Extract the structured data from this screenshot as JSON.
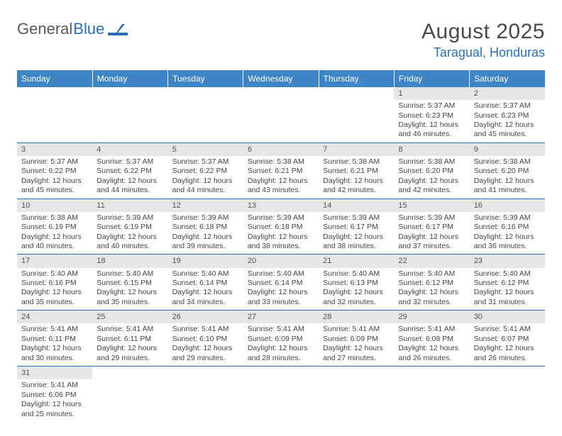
{
  "logo": {
    "text1": "General",
    "text2": "Blue"
  },
  "title": "August 2025",
  "location": "Taragual, Honduras",
  "header_bg": "#3d85c6",
  "daybar_bg": "#e6e6e6",
  "rule_color": "#2a6fb5",
  "weekdays": [
    "Sunday",
    "Monday",
    "Tuesday",
    "Wednesday",
    "Thursday",
    "Friday",
    "Saturday"
  ],
  "weeks": [
    [
      null,
      null,
      null,
      null,
      null,
      {
        "n": "1",
        "sr": "5:37 AM",
        "ss": "6:23 PM",
        "dl": "12 hours and 46 minutes."
      },
      {
        "n": "2",
        "sr": "5:37 AM",
        "ss": "6:23 PM",
        "dl": "12 hours and 45 minutes."
      }
    ],
    [
      {
        "n": "3",
        "sr": "5:37 AM",
        "ss": "6:22 PM",
        "dl": "12 hours and 45 minutes."
      },
      {
        "n": "4",
        "sr": "5:37 AM",
        "ss": "6:22 PM",
        "dl": "12 hours and 44 minutes."
      },
      {
        "n": "5",
        "sr": "5:37 AM",
        "ss": "6:22 PM",
        "dl": "12 hours and 44 minutes."
      },
      {
        "n": "6",
        "sr": "5:38 AM",
        "ss": "6:21 PM",
        "dl": "12 hours and 43 minutes."
      },
      {
        "n": "7",
        "sr": "5:38 AM",
        "ss": "6:21 PM",
        "dl": "12 hours and 42 minutes."
      },
      {
        "n": "8",
        "sr": "5:38 AM",
        "ss": "6:20 PM",
        "dl": "12 hours and 42 minutes."
      },
      {
        "n": "9",
        "sr": "5:38 AM",
        "ss": "6:20 PM",
        "dl": "12 hours and 41 minutes."
      }
    ],
    [
      {
        "n": "10",
        "sr": "5:38 AM",
        "ss": "6:19 PM",
        "dl": "12 hours and 40 minutes."
      },
      {
        "n": "11",
        "sr": "5:39 AM",
        "ss": "6:19 PM",
        "dl": "12 hours and 40 minutes."
      },
      {
        "n": "12",
        "sr": "5:39 AM",
        "ss": "6:18 PM",
        "dl": "12 hours and 39 minutes."
      },
      {
        "n": "13",
        "sr": "5:39 AM",
        "ss": "6:18 PM",
        "dl": "12 hours and 38 minutes."
      },
      {
        "n": "14",
        "sr": "5:39 AM",
        "ss": "6:17 PM",
        "dl": "12 hours and 38 minutes."
      },
      {
        "n": "15",
        "sr": "5:39 AM",
        "ss": "6:17 PM",
        "dl": "12 hours and 37 minutes."
      },
      {
        "n": "16",
        "sr": "5:39 AM",
        "ss": "6:16 PM",
        "dl": "12 hours and 36 minutes."
      }
    ],
    [
      {
        "n": "17",
        "sr": "5:40 AM",
        "ss": "6:16 PM",
        "dl": "12 hours and 35 minutes."
      },
      {
        "n": "18",
        "sr": "5:40 AM",
        "ss": "6:15 PM",
        "dl": "12 hours and 35 minutes."
      },
      {
        "n": "19",
        "sr": "5:40 AM",
        "ss": "6:14 PM",
        "dl": "12 hours and 34 minutes."
      },
      {
        "n": "20",
        "sr": "5:40 AM",
        "ss": "6:14 PM",
        "dl": "12 hours and 33 minutes."
      },
      {
        "n": "21",
        "sr": "5:40 AM",
        "ss": "6:13 PM",
        "dl": "12 hours and 32 minutes."
      },
      {
        "n": "22",
        "sr": "5:40 AM",
        "ss": "6:12 PM",
        "dl": "12 hours and 32 minutes."
      },
      {
        "n": "23",
        "sr": "5:40 AM",
        "ss": "6:12 PM",
        "dl": "12 hours and 31 minutes."
      }
    ],
    [
      {
        "n": "24",
        "sr": "5:41 AM",
        "ss": "6:11 PM",
        "dl": "12 hours and 30 minutes."
      },
      {
        "n": "25",
        "sr": "5:41 AM",
        "ss": "6:11 PM",
        "dl": "12 hours and 29 minutes."
      },
      {
        "n": "26",
        "sr": "5:41 AM",
        "ss": "6:10 PM",
        "dl": "12 hours and 29 minutes."
      },
      {
        "n": "27",
        "sr": "5:41 AM",
        "ss": "6:09 PM",
        "dl": "12 hours and 28 minutes."
      },
      {
        "n": "28",
        "sr": "5:41 AM",
        "ss": "6:09 PM",
        "dl": "12 hours and 27 minutes."
      },
      {
        "n": "29",
        "sr": "5:41 AM",
        "ss": "6:08 PM",
        "dl": "12 hours and 26 minutes."
      },
      {
        "n": "30",
        "sr": "5:41 AM",
        "ss": "6:07 PM",
        "dl": "12 hours and 26 minutes."
      }
    ],
    [
      {
        "n": "31",
        "sr": "5:41 AM",
        "ss": "6:06 PM",
        "dl": "12 hours and 25 minutes."
      },
      null,
      null,
      null,
      null,
      null,
      null
    ]
  ],
  "labels": {
    "sunrise": "Sunrise:",
    "sunset": "Sunset:",
    "daylight": "Daylight:"
  }
}
